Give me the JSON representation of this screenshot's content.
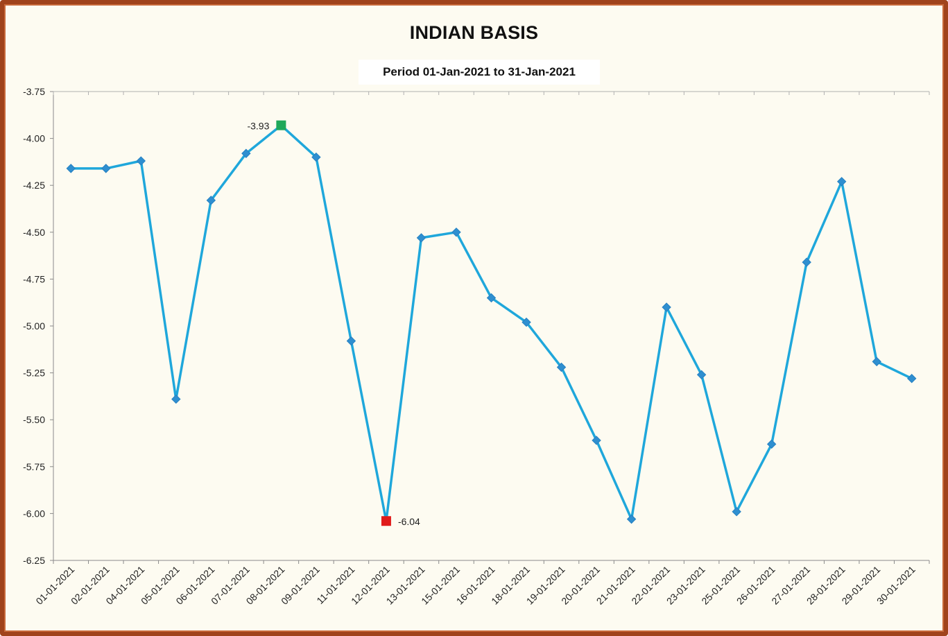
{
  "chart_data": {
    "type": "line",
    "title": "INDIAN BASIS",
    "subtitle": "Period 01-Jan-2021 to 31-Jan-2021",
    "xlabel": "",
    "ylabel": "",
    "ylim": [
      -6.25,
      -3.75
    ],
    "yticks": [
      "-3.75",
      "-4.00",
      "-4.25",
      "-4.50",
      "-4.75",
      "-5.00",
      "-5.25",
      "-5.50",
      "-5.75",
      "-6.00",
      "-6.25"
    ],
    "grid": false,
    "legend": "none",
    "categories": [
      "01-01-2021",
      "02-01-2021",
      "04-01-2021",
      "05-01-2021",
      "06-01-2021",
      "07-01-2021",
      "08-01-2021",
      "09-01-2021",
      "11-01-2021",
      "12-01-2021",
      "13-01-2021",
      "15-01-2021",
      "16-01-2021",
      "18-01-2021",
      "19-01-2021",
      "20-01-2021",
      "21-01-2021",
      "22-01-2021",
      "23-01-2021",
      "25-01-2021",
      "26-01-2021",
      "27-01-2021",
      "28-01-2021",
      "29-01-2021",
      "30-01-2021"
    ],
    "series": [
      {
        "values": [
          -4.16,
          -4.16,
          -4.12,
          -5.39,
          -4.33,
          -4.08,
          -3.93,
          -4.1,
          -5.08,
          -6.04,
          -4.53,
          -4.5,
          -4.85,
          -4.98,
          -5.22,
          -5.61,
          -6.03,
          -4.9,
          -5.26,
          -5.99,
          -5.63,
          -4.66,
          -4.23,
          -5.19,
          -5.28
        ],
        "color": "#1fa7db"
      }
    ],
    "annotations": [
      {
        "index": 6,
        "label": "-3.93",
        "kind": "max",
        "color": "#1fa85a"
      },
      {
        "index": 9,
        "label": "-6.04",
        "kind": "min",
        "color": "#e01b1b"
      }
    ]
  }
}
